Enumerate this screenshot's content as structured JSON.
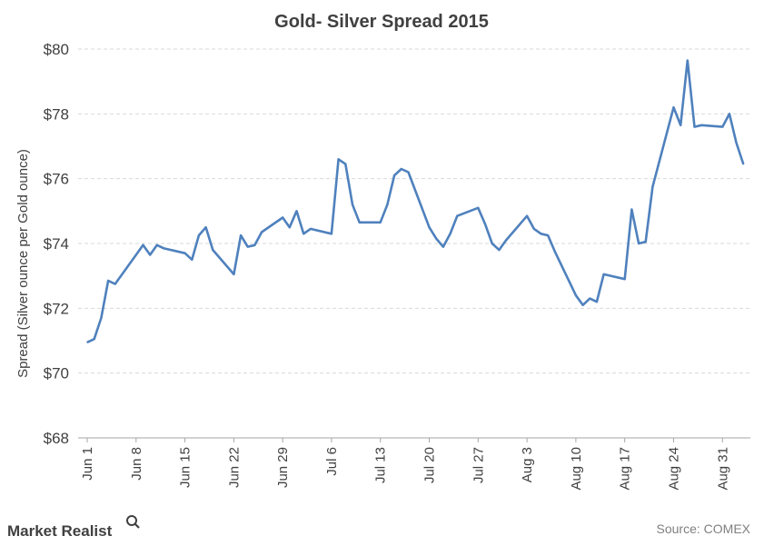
{
  "chart_data": {
    "type": "line",
    "title": "Gold- Silver Spread 2015",
    "ylabel": "Spread (Silver ounce per Gold ounce)",
    "xlabel": "",
    "ylim": [
      68,
      80
    ],
    "y_ticks": [
      68,
      70,
      72,
      74,
      76,
      78,
      80
    ],
    "y_tick_labels": [
      "$68",
      "$70",
      "$72",
      "$74",
      "$76",
      "$78",
      "$80"
    ],
    "x_ticks": [
      "Jun 1",
      "Jun 8",
      "Jun 15",
      "Jun 22",
      "Jun 29",
      "Jul 6",
      "Jul 13",
      "Jul 20",
      "Jul 27",
      "Aug 3",
      "Aug 10",
      "Aug 17",
      "Aug 24",
      "Aug 31"
    ],
    "grid": true,
    "line_color": "#4f81bd",
    "series": [
      {
        "name": "",
        "x": [
          "2015-06-01",
          "2015-06-02",
          "2015-06-03",
          "2015-06-04",
          "2015-06-05",
          "2015-06-08",
          "2015-06-09",
          "2015-06-10",
          "2015-06-11",
          "2015-06-12",
          "2015-06-15",
          "2015-06-16",
          "2015-06-17",
          "2015-06-18",
          "2015-06-19",
          "2015-06-22",
          "2015-06-23",
          "2015-06-24",
          "2015-06-25",
          "2015-06-26",
          "2015-06-29",
          "2015-06-30",
          "2015-07-01",
          "2015-07-02",
          "2015-07-03",
          "2015-07-06",
          "2015-07-07",
          "2015-07-08",
          "2015-07-09",
          "2015-07-10",
          "2015-07-13",
          "2015-07-14",
          "2015-07-15",
          "2015-07-16",
          "2015-07-17",
          "2015-07-20",
          "2015-07-21",
          "2015-07-22",
          "2015-07-23",
          "2015-07-24",
          "2015-07-27",
          "2015-07-28",
          "2015-07-29",
          "2015-07-30",
          "2015-07-31",
          "2015-08-03",
          "2015-08-04",
          "2015-08-05",
          "2015-08-06",
          "2015-08-07",
          "2015-08-10",
          "2015-08-11",
          "2015-08-12",
          "2015-08-13",
          "2015-08-14",
          "2015-08-17",
          "2015-08-18",
          "2015-08-19",
          "2015-08-20",
          "2015-08-21",
          "2015-08-24",
          "2015-08-25",
          "2015-08-26",
          "2015-08-27",
          "2015-08-28",
          "2015-08-31",
          "2015-09-01",
          "2015-09-02",
          "2015-09-03"
        ],
        "values": [
          70.95,
          71.05,
          71.7,
          72.85,
          72.75,
          73.65,
          73.95,
          73.65,
          73.95,
          73.85,
          73.7,
          73.5,
          74.25,
          74.5,
          73.8,
          73.05,
          74.25,
          73.9,
          73.95,
          74.35,
          74.8,
          74.5,
          75.0,
          74.3,
          74.45,
          74.3,
          76.6,
          76.45,
          75.2,
          74.65,
          74.65,
          75.2,
          76.1,
          76.3,
          76.2,
          74.5,
          74.15,
          73.9,
          74.3,
          74.85,
          75.1,
          74.6,
          74.0,
          73.8,
          74.1,
          74.85,
          74.45,
          74.3,
          74.25,
          73.75,
          72.4,
          72.1,
          72.3,
          72.2,
          73.05,
          72.9,
          75.05,
          74.0,
          74.05,
          75.75,
          78.2,
          77.65,
          79.65,
          77.6,
          77.65,
          77.6,
          78.0,
          77.1,
          76.45
        ]
      }
    ]
  },
  "brand": {
    "name": "Market Realist"
  },
  "source": "Source: COMEX"
}
